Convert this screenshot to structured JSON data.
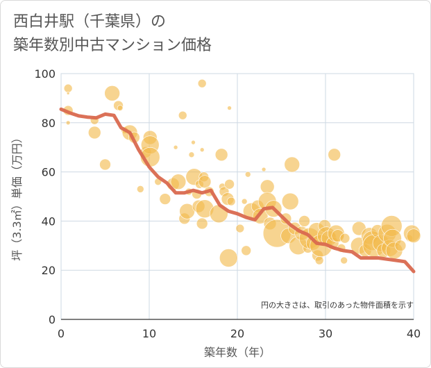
{
  "title": "西白井駅（千葉県）の\n築年数別中古マンション価格",
  "chart_data": {
    "type": "scatter",
    "xlabel": "築年数（年）",
    "ylabel": "坪（3.3㎡）単価（万円）",
    "xlim": [
      0,
      40
    ],
    "ylim": [
      0,
      100
    ],
    "xticks": [
      0,
      10,
      20,
      30,
      40
    ],
    "yticks": [
      0,
      20,
      40,
      60,
      80,
      100
    ],
    "grid": true,
    "note": "円の大きさは、取引のあった物件面積を示す",
    "colors": {
      "bubble": "#f2b94c",
      "line": "#d9694f",
      "grid": "#cdd8e3"
    },
    "points": [
      {
        "x": 0.8,
        "y": 94,
        "s": 6
      },
      {
        "x": 0.8,
        "y": 92,
        "s": 2
      },
      {
        "x": 0.8,
        "y": 85,
        "s": 7
      },
      {
        "x": 0.8,
        "y": 80,
        "s": 3
      },
      {
        "x": 3.8,
        "y": 81,
        "s": 6
      },
      {
        "x": 3.8,
        "y": 76,
        "s": 9
      },
      {
        "x": 5,
        "y": 63,
        "s": 8
      },
      {
        "x": 5.8,
        "y": 92,
        "s": 11
      },
      {
        "x": 6.5,
        "y": 87,
        "s": 7
      },
      {
        "x": 6.7,
        "y": 86,
        "s": 4
      },
      {
        "x": 7.2,
        "y": 77,
        "s": 5
      },
      {
        "x": 7.8,
        "y": 76,
        "s": 11
      },
      {
        "x": 8.3,
        "y": 74,
        "s": 8
      },
      {
        "x": 9,
        "y": 53,
        "s": 5
      },
      {
        "x": 9.6,
        "y": 68,
        "s": 8
      },
      {
        "x": 10.1,
        "y": 74,
        "s": 10
      },
      {
        "x": 10.1,
        "y": 71,
        "s": 13
      },
      {
        "x": 10.1,
        "y": 66,
        "s": 14
      },
      {
        "x": 11,
        "y": 56,
        "s": 5
      },
      {
        "x": 11.8,
        "y": 49,
        "s": 8
      },
      {
        "x": 12.7,
        "y": 55,
        "s": 9
      },
      {
        "x": 13,
        "y": 70,
        "s": 3
      },
      {
        "x": 13.3,
        "y": 56,
        "s": 11
      },
      {
        "x": 13.8,
        "y": 83,
        "s": 6
      },
      {
        "x": 14,
        "y": 41,
        "s": 8
      },
      {
        "x": 14.3,
        "y": 44,
        "s": 11
      },
      {
        "x": 14.5,
        "y": 52,
        "s": 5
      },
      {
        "x": 14.8,
        "y": 67,
        "s": 4
      },
      {
        "x": 15,
        "y": 72,
        "s": 3
      },
      {
        "x": 15.1,
        "y": 58,
        "s": 12
      },
      {
        "x": 15.4,
        "y": 51,
        "s": 7
      },
      {
        "x": 15.6,
        "y": 46,
        "s": 9
      },
      {
        "x": 15.7,
        "y": 55,
        "s": 6
      },
      {
        "x": 16,
        "y": 96,
        "s": 6
      },
      {
        "x": 16,
        "y": 69,
        "s": 3
      },
      {
        "x": 16,
        "y": 39,
        "s": 8
      },
      {
        "x": 16.2,
        "y": 58,
        "s": 7
      },
      {
        "x": 16.3,
        "y": 56,
        "s": 9
      },
      {
        "x": 16.3,
        "y": 45,
        "s": 13
      },
      {
        "x": 16.8,
        "y": 52,
        "s": 7
      },
      {
        "x": 17.9,
        "y": 43,
        "s": 13
      },
      {
        "x": 18.2,
        "y": 67,
        "s": 9
      },
      {
        "x": 18.3,
        "y": 54,
        "s": 5
      },
      {
        "x": 18.5,
        "y": 52,
        "s": 7
      },
      {
        "x": 18.9,
        "y": 49,
        "s": 9
      },
      {
        "x": 19,
        "y": 25,
        "s": 13
      },
      {
        "x": 19.1,
        "y": 55,
        "s": 7
      },
      {
        "x": 19.1,
        "y": 86,
        "s": 3
      },
      {
        "x": 19.3,
        "y": 48,
        "s": 6
      },
      {
        "x": 20.3,
        "y": 37,
        "s": 6
      },
      {
        "x": 20.8,
        "y": 48,
        "s": 4
      },
      {
        "x": 21,
        "y": 28,
        "s": 7
      },
      {
        "x": 21.2,
        "y": 59,
        "s": 4
      },
      {
        "x": 21.6,
        "y": 44,
        "s": 12
      },
      {
        "x": 22.3,
        "y": 46,
        "s": 9
      },
      {
        "x": 22.6,
        "y": 42,
        "s": 11
      },
      {
        "x": 23,
        "y": 61,
        "s": 3
      },
      {
        "x": 23.4,
        "y": 54,
        "s": 10
      },
      {
        "x": 23.4,
        "y": 48,
        "s": 13
      },
      {
        "x": 23.7,
        "y": 39,
        "s": 9
      },
      {
        "x": 24.1,
        "y": 45,
        "s": 12
      },
      {
        "x": 24.5,
        "y": 35,
        "s": 20
      },
      {
        "x": 25.5,
        "y": 41,
        "s": 8
      },
      {
        "x": 25.8,
        "y": 34,
        "s": 11
      },
      {
        "x": 26,
        "y": 48,
        "s": 12
      },
      {
        "x": 26.2,
        "y": 63,
        "s": 11
      },
      {
        "x": 26.5,
        "y": 37,
        "s": 9
      },
      {
        "x": 26.9,
        "y": 30,
        "s": 13
      },
      {
        "x": 27.3,
        "y": 35,
        "s": 10
      },
      {
        "x": 27.6,
        "y": 40,
        "s": 8
      },
      {
        "x": 28,
        "y": 29,
        "s": 7
      },
      {
        "x": 28.2,
        "y": 33,
        "s": 15
      },
      {
        "x": 28.6,
        "y": 31,
        "s": 10
      },
      {
        "x": 29,
        "y": 36,
        "s": 12
      },
      {
        "x": 29.1,
        "y": 26,
        "s": 8
      },
      {
        "x": 29.3,
        "y": 24,
        "s": 6
      },
      {
        "x": 29.5,
        "y": 30,
        "s": 16
      },
      {
        "x": 29.9,
        "y": 38,
        "s": 9
      },
      {
        "x": 30.1,
        "y": 34,
        "s": 13
      },
      {
        "x": 30.4,
        "y": 33,
        "s": 11
      },
      {
        "x": 30.8,
        "y": 31,
        "s": 9
      },
      {
        "x": 31,
        "y": 67,
        "s": 9
      },
      {
        "x": 31.2,
        "y": 35,
        "s": 12
      },
      {
        "x": 31.4,
        "y": 34,
        "s": 9
      },
      {
        "x": 31.8,
        "y": 29,
        "s": 6
      },
      {
        "x": 32.1,
        "y": 24,
        "s": 5
      },
      {
        "x": 32.2,
        "y": 33,
        "s": 7
      },
      {
        "x": 33.8,
        "y": 37,
        "s": 10
      },
      {
        "x": 33.8,
        "y": 30,
        "s": 12
      },
      {
        "x": 34.5,
        "y": 28,
        "s": 9
      },
      {
        "x": 35,
        "y": 34,
        "s": 12
      },
      {
        "x": 35.3,
        "y": 32,
        "s": 14
      },
      {
        "x": 35.5,
        "y": 30,
        "s": 16
      },
      {
        "x": 35.9,
        "y": 36,
        "s": 9
      },
      {
        "x": 36.3,
        "y": 31,
        "s": 12
      },
      {
        "x": 36.6,
        "y": 28,
        "s": 10
      },
      {
        "x": 37,
        "y": 35,
        "s": 13
      },
      {
        "x": 37.3,
        "y": 29,
        "s": 12
      },
      {
        "x": 37.5,
        "y": 38,
        "s": 15
      },
      {
        "x": 37.6,
        "y": 33,
        "s": 13
      },
      {
        "x": 37.8,
        "y": 28,
        "s": 12
      },
      {
        "x": 38.5,
        "y": 30,
        "s": 8
      },
      {
        "x": 39.5,
        "y": 33,
        "s": 5
      },
      {
        "x": 39.8,
        "y": 35,
        "s": 12
      },
      {
        "x": 40,
        "y": 34,
        "s": 10
      }
    ],
    "trend": [
      {
        "x": 0,
        "y": 85.5
      },
      {
        "x": 1,
        "y": 84
      },
      {
        "x": 2,
        "y": 82.8
      },
      {
        "x": 3,
        "y": 82.3
      },
      {
        "x": 4,
        "y": 82
      },
      {
        "x": 5,
        "y": 83.5
      },
      {
        "x": 6,
        "y": 83
      },
      {
        "x": 6.8,
        "y": 78
      },
      {
        "x": 7.8,
        "y": 76
      },
      {
        "x": 8.8,
        "y": 69
      },
      {
        "x": 10,
        "y": 62
      },
      {
        "x": 11,
        "y": 58
      },
      {
        "x": 12,
        "y": 55.5
      },
      {
        "x": 13,
        "y": 51.5
      },
      {
        "x": 14,
        "y": 51.5
      },
      {
        "x": 15,
        "y": 52.5
      },
      {
        "x": 16,
        "y": 51.5
      },
      {
        "x": 17,
        "y": 52.5
      },
      {
        "x": 18,
        "y": 46.5
      },
      {
        "x": 19,
        "y": 44
      },
      {
        "x": 20,
        "y": 43
      },
      {
        "x": 21,
        "y": 41.5
      },
      {
        "x": 22,
        "y": 40.5
      },
      {
        "x": 23,
        "y": 45
      },
      {
        "x": 24,
        "y": 45.5
      },
      {
        "x": 25,
        "y": 42
      },
      {
        "x": 26,
        "y": 38.5
      },
      {
        "x": 27,
        "y": 36
      },
      {
        "x": 28,
        "y": 34.5
      },
      {
        "x": 29,
        "y": 31
      },
      {
        "x": 30,
        "y": 30.5
      },
      {
        "x": 31,
        "y": 29
      },
      {
        "x": 32,
        "y": 28
      },
      {
        "x": 33,
        "y": 27.5
      },
      {
        "x": 34,
        "y": 25
      },
      {
        "x": 35,
        "y": 25
      },
      {
        "x": 36,
        "y": 25
      },
      {
        "x": 37,
        "y": 24.5
      },
      {
        "x": 38,
        "y": 24
      },
      {
        "x": 39,
        "y": 23.5
      },
      {
        "x": 40,
        "y": 19.5
      }
    ]
  }
}
